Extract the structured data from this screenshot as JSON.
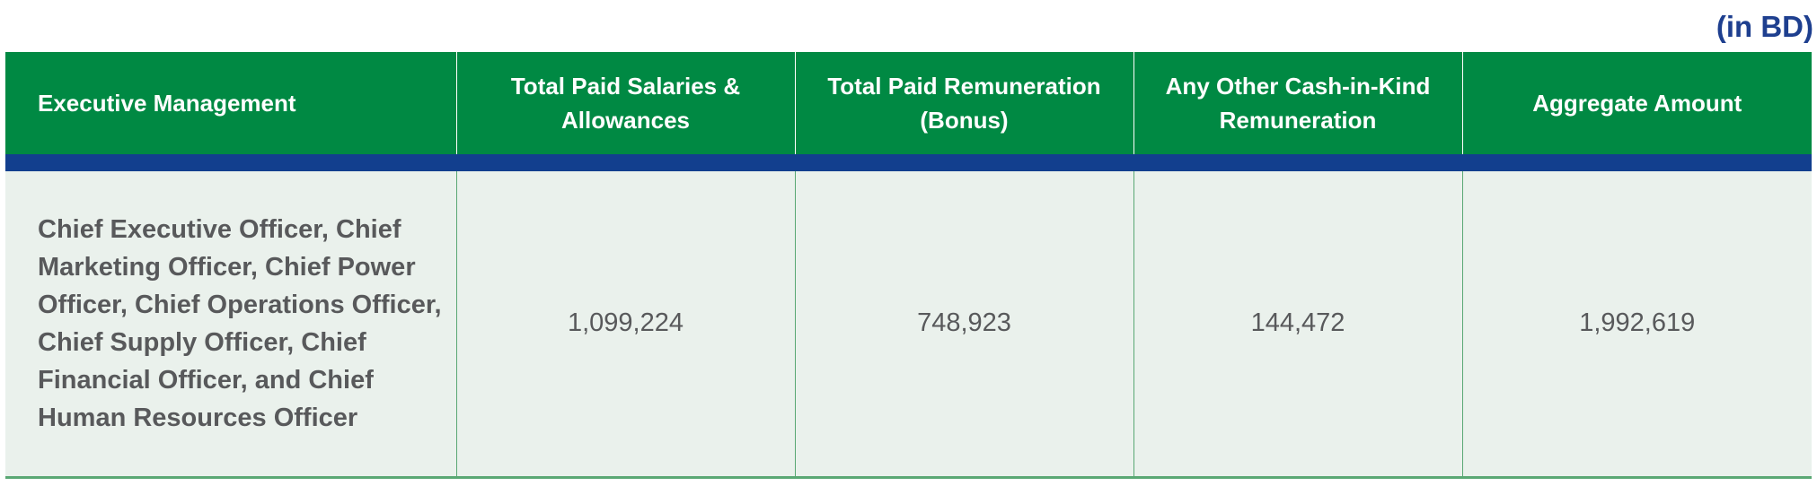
{
  "unit_note": "(in BD)",
  "table": {
    "headers": [
      "Executive Management",
      "Total Paid Salaries & Allowances",
      "Total Paid Remuneration (Bonus)",
      "Any Other Cash-in-Kind Remuneration",
      "Aggregate Amount"
    ],
    "rows": [
      {
        "executive_management": "Chief Executive Officer, Chief Marketing Officer, Chief Power Officer, Chief Operations Officer, Chief Supply Officer, Chief Financial Officer, and Chief Human Resources Officer",
        "salaries_allowances": "1,099,224",
        "remuneration_bonus": "748,923",
        "other_cash_in_kind": "144,472",
        "aggregate_amount": "1,992,619"
      }
    ]
  },
  "colors": {
    "header_green": "#008943",
    "stripe_blue": "#123f8e",
    "row_background": "#eaf1ec",
    "unit_note_blue": "#1e3f8f",
    "body_text": "#58595b"
  }
}
